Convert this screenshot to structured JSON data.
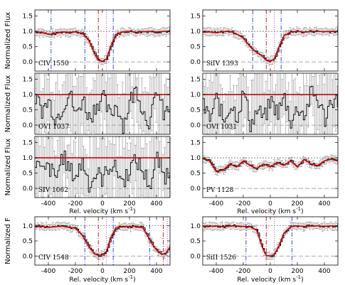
{
  "chart_data": [
    {
      "type": "line",
      "panel": "CIV 1550",
      "label": "CIV 1550",
      "ylabel": "Normalized Flux",
      "xlim": [
        -500,
        500
      ],
      "ylim": [
        -0.3,
        1.7
      ],
      "yticks": [
        0.0,
        0.5,
        1.0,
        1.5
      ],
      "xticklabels": false,
      "continuum": 1.0,
      "fit_color": "#cc0000",
      "markers_blue_dashdot": [
        -380,
        -130,
        80
      ],
      "markers_red_dashdot": [
        -30
      ],
      "markers_magenta_dot": [
        30
      ],
      "profile": {
        "x": [
          -500,
          -450,
          -400,
          -350,
          -300,
          -250,
          -200,
          -150,
          -100,
          -60,
          -30,
          0,
          30,
          60,
          100,
          150,
          200,
          250,
          300,
          350,
          400,
          450,
          500
        ],
        "y": [
          0.98,
          0.97,
          0.9,
          0.93,
          0.98,
          0.97,
          0.98,
          0.94,
          0.7,
          0.28,
          0.05,
          0.02,
          0.1,
          0.5,
          0.9,
          0.98,
          1.0,
          0.97,
          0.99,
          1.0,
          0.98,
          1.0,
          1.0
        ]
      }
    },
    {
      "type": "line",
      "panel": "SiIV 1393",
      "label": "SiIV 1393",
      "ylabel": "",
      "xlim": [
        -500,
        500
      ],
      "ylim": [
        -0.3,
        1.7
      ],
      "yticks": [
        0.0,
        0.5,
        1.0,
        1.5
      ],
      "xticklabels": false,
      "continuum": 1.0,
      "fit_color": "#cc0000",
      "markers_blue_dashdot": [
        -130,
        80
      ],
      "markers_red_dashdot": [
        -30
      ],
      "markers_magenta_dot": [
        30
      ],
      "profile": {
        "x": [
          -500,
          -450,
          -400,
          -350,
          -300,
          -250,
          -200,
          -150,
          -100,
          -60,
          -30,
          0,
          30,
          60,
          100,
          150,
          200,
          250,
          300,
          350,
          400,
          450,
          500
        ],
        "y": [
          0.97,
          0.98,
          0.95,
          0.99,
          1.0,
          0.92,
          0.78,
          0.5,
          0.3,
          0.2,
          0.05,
          0.02,
          0.1,
          0.45,
          0.85,
          0.98,
          1.0,
          0.97,
          1.0,
          1.0,
          0.99,
          1.0,
          0.99
        ]
      }
    },
    {
      "type": "line",
      "panel": "OVI 1037",
      "label": "OVI 1037",
      "ylabel": "Normalized Flux",
      "xlim": [
        -500,
        500
      ],
      "ylim": [
        -0.3,
        1.7
      ],
      "yticks": [
        0.0,
        0.5,
        1.0,
        1.5
      ],
      "xticklabels": false,
      "continuum": 1.0,
      "fit_color": "#cc0000",
      "noisy": true,
      "markers_blue_dashdot": [],
      "markers_red_dashdot": [],
      "markers_magenta_dot": [],
      "profile": {
        "x": [
          -500,
          -450,
          -400,
          -350,
          -300,
          -250,
          -200,
          -150,
          -100,
          -50,
          0,
          50,
          100,
          150,
          200,
          250,
          300,
          350,
          400,
          450,
          500
        ],
        "y": [
          0.9,
          0.5,
          0.8,
          0.2,
          0.6,
          1.1,
          0.3,
          0.9,
          0.2,
          0.7,
          0.9,
          0.3,
          0.7,
          0.0,
          0.8,
          1.2,
          0.4,
          0.1,
          1.2,
          0.3,
          0.6
        ]
      }
    },
    {
      "type": "line",
      "panel": "OVI 1031",
      "label": "OVI 1031",
      "ylabel": "",
      "xlim": [
        -500,
        500
      ],
      "ylim": [
        -0.3,
        1.7
      ],
      "yticks": [
        0.0,
        0.5,
        1.0,
        1.5
      ],
      "xticklabels": false,
      "continuum": 1.0,
      "fit_color": "#cc0000",
      "noisy": true,
      "markers_blue_dashdot": [],
      "markers_red_dashdot": [],
      "markers_magenta_dot": [],
      "profile": {
        "x": [
          -500,
          -450,
          -400,
          -350,
          -300,
          -250,
          -200,
          -150,
          -100,
          -50,
          0,
          50,
          100,
          150,
          200,
          250,
          300,
          350,
          400,
          450,
          500
        ],
        "y": [
          0.6,
          0.2,
          0.9,
          0.1,
          0.7,
          0.3,
          1.1,
          0.0,
          0.5,
          0.2,
          0.8,
          0.4,
          0.9,
          0.1,
          0.6,
          0.3,
          1.1,
          0.8,
          0.2,
          0.9,
          0.7
        ]
      }
    },
    {
      "type": "line",
      "panel": "SIV 1062",
      "label": "SIV 1062",
      "ylabel": "Normalized Flux",
      "xlim": [
        -500,
        500
      ],
      "ylim": [
        -0.3,
        1.7
      ],
      "yticks": [
        0.0,
        0.5,
        1.0,
        1.5
      ],
      "xticklabels": true,
      "continuum": 1.0,
      "fit_color": "#cc0000",
      "noisy": true,
      "markers_blue_dashdot": [],
      "markers_red_dashdot": [],
      "markers_magenta_dot": [],
      "profile": {
        "x": [
          -500,
          -450,
          -400,
          -350,
          -300,
          -250,
          -200,
          -150,
          -100,
          -50,
          0,
          50,
          100,
          150,
          200,
          250,
          300,
          350,
          400,
          450,
          500
        ],
        "y": [
          0.9,
          0.5,
          0.7,
          0.3,
          1.1,
          0.6,
          0.4,
          0.9,
          0.1,
          0.5,
          0.3,
          0.8,
          0.6,
          0.2,
          0.7,
          0.9,
          0.5,
          0.1,
          1.0,
          0.4,
          0.6
        ]
      }
    },
    {
      "type": "line",
      "panel": "PV 1128",
      "label": "PV 1128",
      "ylabel": "",
      "xlim": [
        -500,
        500
      ],
      "ylim": [
        -0.3,
        1.7
      ],
      "yticks": [
        0.0,
        0.5,
        1.0,
        1.5
      ],
      "xticklabels": true,
      "continuum": 1.0,
      "fit_color": "#cc0000",
      "markers_blue_dashdot": [],
      "markers_red_dashdot": [],
      "markers_magenta_dot": [],
      "profile": {
        "x": [
          -500,
          -450,
          -400,
          -350,
          -300,
          -250,
          -200,
          -150,
          -100,
          -50,
          0,
          50,
          100,
          150,
          200,
          250,
          300,
          350,
          400,
          450,
          500
        ],
        "y": [
          1.0,
          0.9,
          0.55,
          0.6,
          0.8,
          0.7,
          0.9,
          0.75,
          0.65,
          0.8,
          0.7,
          0.85,
          0.75,
          0.9,
          0.7,
          0.95,
          0.8,
          0.75,
          0.9,
          0.95,
          0.9
        ]
      }
    },
    {
      "type": "line",
      "panel": "CIV 1548",
      "label": "CIV 1548",
      "ylabel": "Normalized F",
      "xlim": [
        -500,
        500
      ],
      "ylim": [
        -0.3,
        1.3
      ],
      "yticks": [
        0.0,
        0.5,
        1.0
      ],
      "xticklabels": true,
      "continuum": 1.0,
      "fit_color": "#cc0000",
      "markers_blue_dashdot": [
        -130,
        80,
        350
      ],
      "markers_red_dashdot": [
        -30,
        450
      ],
      "markers_magenta_dot": [
        30,
        480
      ],
      "profile": {
        "x": [
          -500,
          -450,
          -400,
          -350,
          -300,
          -250,
          -200,
          -150,
          -100,
          -60,
          -30,
          0,
          30,
          60,
          100,
          150,
          200,
          250,
          300,
          330,
          360,
          400,
          440,
          470,
          500
        ],
        "y": [
          1.0,
          0.98,
          0.95,
          0.97,
          0.99,
          0.95,
          0.92,
          0.7,
          0.3,
          0.08,
          0.02,
          0.05,
          0.15,
          0.6,
          0.93,
          0.98,
          0.97,
          0.99,
          0.93,
          0.7,
          0.45,
          0.2,
          0.05,
          0.1,
          0.3
        ]
      }
    },
    {
      "type": "line",
      "panel": "SiII 1526",
      "label": "SiII 1526",
      "ylabel": "",
      "xlim": [
        -500,
        500
      ],
      "ylim": [
        -0.3,
        1.3
      ],
      "yticks": [
        0.0,
        0.5,
        1.0
      ],
      "xticklabels": true,
      "continuum": 1.0,
      "fit_color": "#cc0000",
      "markers_blue_dashdot": [
        -180,
        160
      ],
      "markers_red_dashdot": [
        -30
      ],
      "markers_magenta_dot": [
        30
      ],
      "profile": {
        "x": [
          -500,
          -450,
          -400,
          -350,
          -300,
          -250,
          -200,
          -150,
          -100,
          -60,
          -30,
          0,
          30,
          60,
          100,
          150,
          200,
          250,
          300,
          350,
          400,
          450,
          500
        ],
        "y": [
          0.99,
          0.98,
          1.0,
          0.97,
          0.99,
          1.0,
          0.98,
          0.97,
          0.85,
          0.3,
          0.02,
          0.0,
          0.05,
          0.3,
          0.75,
          0.97,
          1.0,
          0.98,
          0.99,
          1.0,
          0.98,
          1.0,
          0.99
        ]
      }
    }
  ],
  "axes": {
    "xlabel": "Rel. velocity  (km s",
    "xlabel_sup": "-1",
    "xlabel_close": ")",
    "xticklabels": [
      "-400",
      "-200",
      "0",
      "200",
      "400"
    ],
    "yticklabels_tall": [
      "0.0",
      "0.5",
      "1.0",
      "1.5"
    ],
    "yticklabels_short": [
      "0.0",
      "0.5",
      "1.0"
    ]
  },
  "colors": {
    "fit": "#cc0000",
    "data": "#000000",
    "errorbar": "#999999",
    "marker_blue": "#3355cc",
    "marker_red": "#cc2222",
    "marker_magenta": "#cc33cc",
    "zero_line": "#8888aa"
  }
}
